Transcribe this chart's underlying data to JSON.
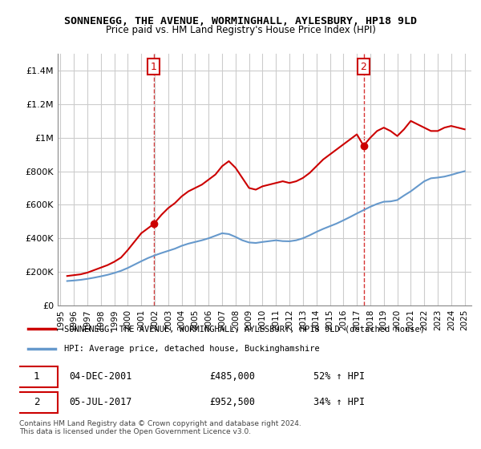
{
  "title": "SONNENEGG, THE AVENUE, WORMINGHALL, AYLESBURY, HP18 9LD",
  "subtitle": "Price paid vs. HM Land Registry's House Price Index (HPI)",
  "xlabel": "",
  "ylabel": "",
  "background_color": "#ffffff",
  "plot_bg_color": "#ffffff",
  "grid_color": "#cccccc",
  "red_color": "#cc0000",
  "blue_color": "#6699cc",
  "sale1_year": 2001.92,
  "sale1_price": 485000,
  "sale1_label": "1",
  "sale1_date": "04-DEC-2001",
  "sale1_hpi_pct": "52% ↑ HPI",
  "sale2_year": 2017.5,
  "sale2_price": 952500,
  "sale2_label": "2",
  "sale2_date": "05-JUL-2017",
  "sale2_hpi_pct": "34% ↑ HPI",
  "legend_line1": "SONNENEGG, THE AVENUE, WORMINGHALL, AYLESBURY, HP18 9LD (detached house)",
  "legend_line2": "HPI: Average price, detached house, Buckinghamshire",
  "footnote": "Contains HM Land Registry data © Crown copyright and database right 2024.\nThis data is licensed under the Open Government Licence v3.0.",
  "ylim": [
    0,
    1500000
  ],
  "yticks": [
    0,
    200000,
    400000,
    600000,
    800000,
    1000000,
    1200000,
    1400000
  ],
  "ytick_labels": [
    "£0",
    "£200K",
    "£400K",
    "£600K",
    "£800K",
    "£1M",
    "£1.2M",
    "£1.4M"
  ],
  "red_x": [
    1995.5,
    1996.0,
    1996.5,
    1997.0,
    1997.5,
    1998.0,
    1998.5,
    1999.0,
    1999.5,
    2000.0,
    2000.5,
    2001.0,
    2001.92,
    2002.5,
    2003.0,
    2003.5,
    2004.0,
    2004.5,
    2005.0,
    2005.5,
    2006.0,
    2006.5,
    2007.0,
    2007.5,
    2008.0,
    2008.5,
    2009.0,
    2009.5,
    2010.0,
    2010.5,
    2011.0,
    2011.5,
    2012.0,
    2012.5,
    2013.0,
    2013.5,
    2014.0,
    2014.5,
    2015.0,
    2015.5,
    2016.0,
    2016.5,
    2017.0,
    2017.5,
    2018.0,
    2018.5,
    2019.0,
    2019.5,
    2020.0,
    2020.5,
    2021.0,
    2021.5,
    2022.0,
    2022.5,
    2023.0,
    2023.5,
    2024.0,
    2024.5,
    2025.0
  ],
  "red_y": [
    175000,
    180000,
    185000,
    195000,
    210000,
    225000,
    240000,
    260000,
    285000,
    330000,
    380000,
    430000,
    485000,
    540000,
    580000,
    610000,
    650000,
    680000,
    700000,
    720000,
    750000,
    780000,
    830000,
    860000,
    820000,
    760000,
    700000,
    690000,
    710000,
    720000,
    730000,
    740000,
    730000,
    740000,
    760000,
    790000,
    830000,
    870000,
    900000,
    930000,
    960000,
    990000,
    1020000,
    952500,
    1000000,
    1040000,
    1060000,
    1040000,
    1010000,
    1050000,
    1100000,
    1080000,
    1060000,
    1040000,
    1040000,
    1060000,
    1070000,
    1060000,
    1050000
  ],
  "blue_x": [
    1995.5,
    1996.0,
    1996.5,
    1997.0,
    1997.5,
    1998.0,
    1998.5,
    1999.0,
    1999.5,
    2000.0,
    2000.5,
    2001.0,
    2001.5,
    2002.0,
    2002.5,
    2003.0,
    2003.5,
    2004.0,
    2004.5,
    2005.0,
    2005.5,
    2006.0,
    2006.5,
    2007.0,
    2007.5,
    2008.0,
    2008.5,
    2009.0,
    2009.5,
    2010.0,
    2010.5,
    2011.0,
    2011.5,
    2012.0,
    2012.5,
    2013.0,
    2013.5,
    2014.0,
    2014.5,
    2015.0,
    2015.5,
    2016.0,
    2016.5,
    2017.0,
    2017.5,
    2018.0,
    2018.5,
    2019.0,
    2019.5,
    2020.0,
    2020.5,
    2021.0,
    2021.5,
    2022.0,
    2022.5,
    2023.0,
    2023.5,
    2024.0,
    2024.5,
    2025.0
  ],
  "blue_y": [
    145000,
    148000,
    152000,
    158000,
    165000,
    173000,
    182000,
    193000,
    206000,
    223000,
    243000,
    263000,
    282000,
    298000,
    312000,
    325000,
    338000,
    355000,
    368000,
    378000,
    388000,
    400000,
    415000,
    430000,
    425000,
    408000,
    388000,
    375000,
    372000,
    378000,
    383000,
    388000,
    383000,
    382000,
    388000,
    400000,
    418000,
    438000,
    456000,
    472000,
    488000,
    507000,
    527000,
    548000,
    568000,
    588000,
    605000,
    618000,
    620000,
    628000,
    655000,
    680000,
    710000,
    740000,
    758000,
    762000,
    768000,
    778000,
    790000,
    800000
  ],
  "xticks": [
    1995,
    1996,
    1997,
    1998,
    1999,
    2000,
    2001,
    2002,
    2003,
    2004,
    2005,
    2006,
    2007,
    2008,
    2009,
    2010,
    2011,
    2012,
    2013,
    2014,
    2015,
    2016,
    2017,
    2018,
    2019,
    2020,
    2021,
    2022,
    2023,
    2024,
    2025
  ],
  "xlim": [
    1994.8,
    2025.5
  ]
}
